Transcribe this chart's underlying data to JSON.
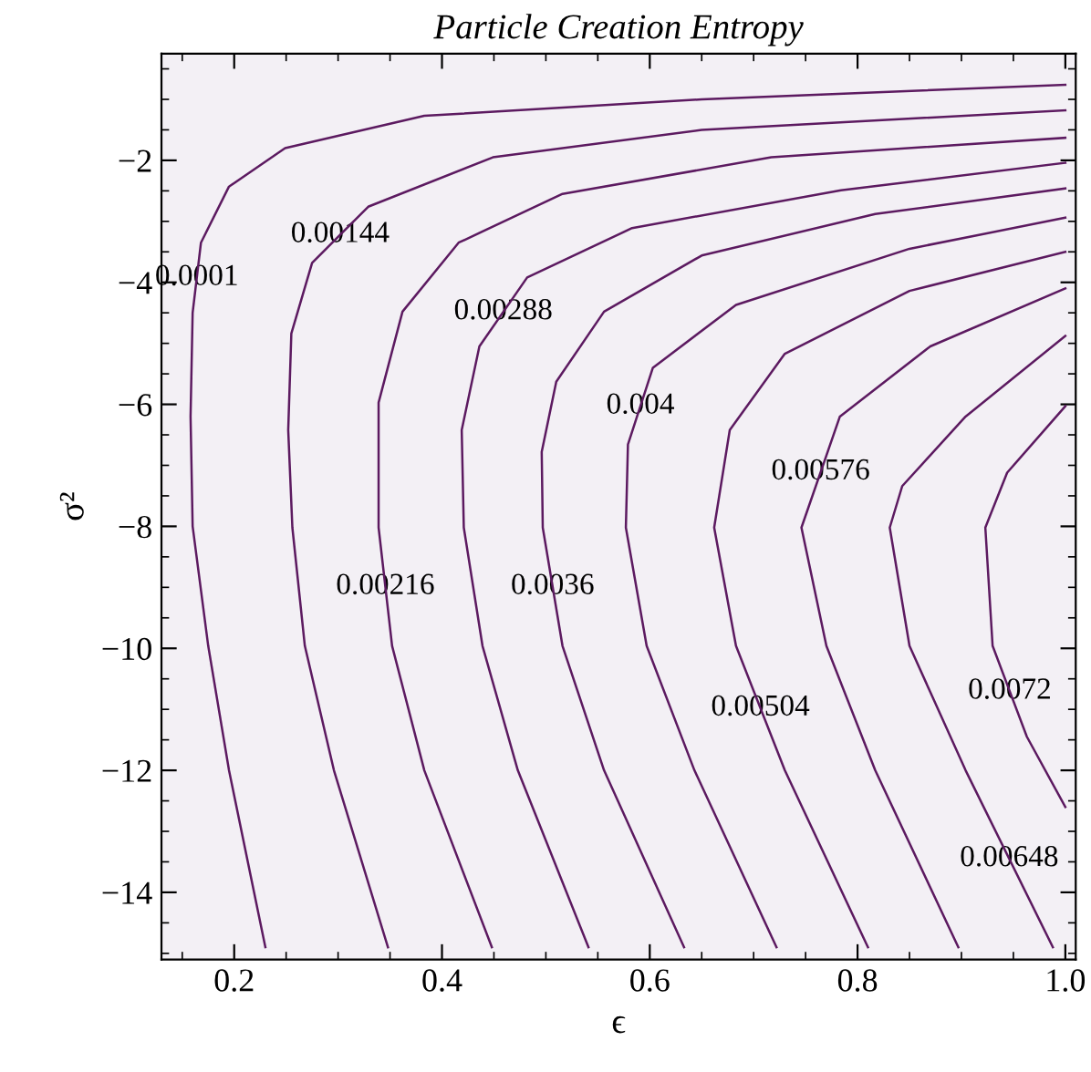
{
  "chart_data": {
    "type": "line",
    "title": "Particle Creation Entropy",
    "xlabel": "ϵ",
    "ylabel": "σ²",
    "xlim": [
      0.13,
      1.01
    ],
    "ylim": [
      -15.1,
      -0.25
    ],
    "xticks": [
      0.2,
      0.4,
      0.6,
      0.8,
      {
        "value": 1.0,
        "label": "1.0"
      }
    ],
    "yticks": [
      -2,
      -4,
      -6,
      -8,
      -10,
      -12,
      -14
    ],
    "grid": false,
    "legend": false,
    "marker": "none",
    "line_style": "solid",
    "series": [
      {
        "name": "0.0001",
        "color": "#5c1a60",
        "x": [
          1.0,
          0.65,
          0.383,
          0.249,
          0.195,
          0.168,
          0.16,
          0.158,
          0.16,
          0.175,
          0.195,
          0.23
        ],
        "values": [
          -0.76,
          -1.0,
          -1.27,
          -1.8,
          -2.43,
          -3.35,
          -4.5,
          -6.2,
          -8.0,
          -9.96,
          -12.0,
          -14.9
        ]
      },
      {
        "name": "0.00144",
        "color": "#5c1a60",
        "x": [
          1.0,
          0.65,
          0.449,
          0.329,
          0.275,
          0.255,
          0.252,
          0.256,
          0.268,
          0.296,
          0.348
        ],
        "values": [
          -1.18,
          -1.5,
          -1.95,
          -2.76,
          -3.68,
          -4.84,
          -6.42,
          -8.02,
          -9.96,
          -12.0,
          -14.9
        ]
      },
      {
        "name": "0.00216",
        "color": "#5c1a60",
        "x": [
          1.0,
          0.717,
          0.516,
          0.416,
          0.362,
          0.339,
          0.339,
          0.352,
          0.383,
          0.448
        ],
        "values": [
          -1.63,
          -1.95,
          -2.55,
          -3.35,
          -4.48,
          -5.97,
          -8.02,
          -9.96,
          -12.0,
          -14.9
        ]
      },
      {
        "name": "0.00288",
        "color": "#5c1a60",
        "x": [
          1.0,
          0.784,
          0.583,
          0.482,
          0.436,
          0.419,
          0.421,
          0.439,
          0.473,
          0.541
        ],
        "values": [
          -2.04,
          -2.49,
          -3.11,
          -3.92,
          -5.05,
          -6.42,
          -8.02,
          -9.96,
          -12.0,
          -14.9
        ]
      },
      {
        "name": "0.0036",
        "color": "#5c1a60",
        "x": [
          1.0,
          0.817,
          0.65,
          0.556,
          0.51,
          0.496,
          0.497,
          0.516,
          0.556,
          0.633
        ],
        "values": [
          -2.46,
          -2.88,
          -3.56,
          -4.48,
          -5.63,
          -6.78,
          -8.02,
          -9.96,
          -12.0,
          -14.9
        ]
      },
      {
        "name": "0.004",
        "color": "#5c1a60",
        "x": [
          1.0,
          0.85,
          0.683,
          0.603,
          0.579,
          0.577,
          0.597,
          0.643,
          0.722
        ],
        "values": [
          -2.94,
          -3.45,
          -4.37,
          -5.4,
          -6.66,
          -8.02,
          -9.96,
          -12.0,
          -14.9
        ]
      },
      {
        "name": "0.00504",
        "color": "#5c1a60",
        "x": [
          1.0,
          0.85,
          0.73,
          0.677,
          0.662,
          0.683,
          0.73,
          0.81
        ],
        "values": [
          -3.5,
          -4.14,
          -5.17,
          -6.42,
          -8.02,
          -9.96,
          -12.0,
          -14.9
        ]
      },
      {
        "name": "0.00576",
        "color": "#5c1a60",
        "x": [
          1.0,
          0.87,
          0.783,
          0.746,
          0.77,
          0.817,
          0.897
        ],
        "values": [
          -4.1,
          -5.05,
          -6.2,
          -8.02,
          -9.96,
          -12.0,
          -14.9
        ]
      },
      {
        "name": "0.00648",
        "color": "#5c1a60",
        "x": [
          1.0,
          0.904,
          0.843,
          0.831,
          0.85,
          0.904,
          0.988
        ],
        "values": [
          -4.88,
          -6.2,
          -7.34,
          -8.02,
          -9.96,
          -12.0,
          -14.9
        ]
      },
      {
        "name": "0.0072",
        "color": "#5c1a60",
        "x": [
          1.0,
          0.944,
          0.923,
          0.93,
          0.963,
          1.0
        ],
        "values": [
          -6.03,
          -7.12,
          -8.02,
          -9.96,
          -11.45,
          -12.6
        ]
      }
    ]
  }
}
